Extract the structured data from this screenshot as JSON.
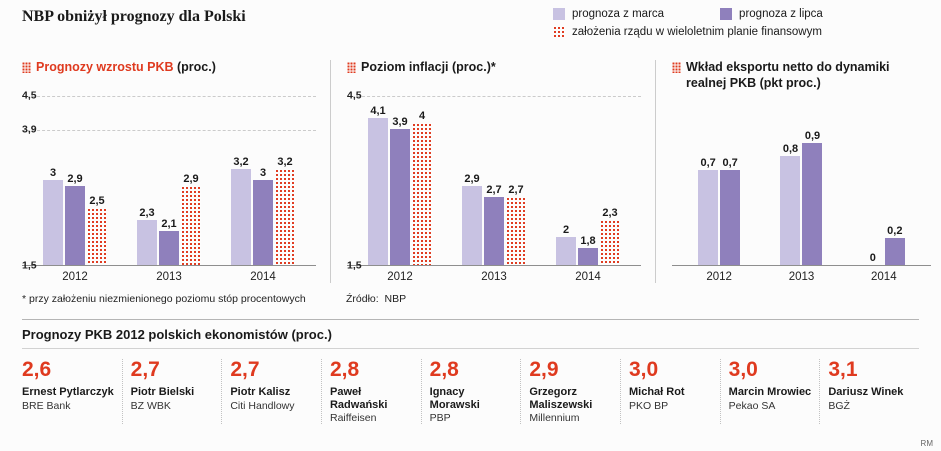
{
  "page_title": "NBP obniżył prognozy dla Polski",
  "legend": {
    "items": [
      {
        "label": "prognoza z marca",
        "style": "marca",
        "color": "#c8c2e2"
      },
      {
        "label": "prognoza z lipca",
        "style": "lipca",
        "color": "#8f80bc"
      },
      {
        "label": "założenia rządu w wieloletnim planie finansowym",
        "style": "rzad",
        "color": "#df3a1f"
      }
    ]
  },
  "colors": {
    "accent_red": "#df3a1f",
    "marca_purple_light": "#c8c2e2",
    "lipca_purple_dark": "#8f80bc",
    "gridline_grey": "#cbcbcb"
  },
  "chart_data": [
    {
      "type": "bar",
      "title": "Prognozy wzrostu PKB",
      "title_suffix": " (proc.)",
      "title_color": "#df3a1f",
      "categories": [
        "2012",
        "2013",
        "2014"
      ],
      "series": [
        {
          "name": "prognoza z marca",
          "style": "marca",
          "values": [
            3,
            2.3,
            3.2
          ]
        },
        {
          "name": "prognoza z lipca",
          "style": "lipca",
          "values": [
            2.9,
            2.1,
            3
          ]
        },
        {
          "name": "założenia rządu w wieloletnim planie finansowym",
          "style": "rzad",
          "values": [
            2.5,
            2.9,
            3.2
          ]
        }
      ],
      "ylim": [
        1.5,
        4.5
      ],
      "yticks": [
        4.5,
        3.9,
        1.5
      ],
      "grid": true,
      "legend_position": "top-right-shared"
    },
    {
      "type": "bar",
      "title": "Poziom inflacji (proc.)*",
      "title_suffix": "",
      "title_color": "#1a1a1a",
      "categories": [
        "2012",
        "2013",
        "2014"
      ],
      "series": [
        {
          "name": "prognoza z marca",
          "style": "marca",
          "values": [
            4.1,
            2.9,
            2
          ]
        },
        {
          "name": "prognoza z lipca",
          "style": "lipca",
          "values": [
            3.9,
            2.7,
            1.8
          ]
        },
        {
          "name": "założenia rządu w wieloletnim planie finansowym",
          "style": "rzad",
          "values": [
            4,
            2.7,
            2.3
          ]
        }
      ],
      "ylim": [
        1.5,
        4.5
      ],
      "yticks": [
        4.5,
        1.5
      ],
      "grid": true,
      "legend_position": "top-right-shared"
    },
    {
      "type": "bar",
      "title": "Wkład eksportu netto do dynamiki realnej PKB (pkt proc.)",
      "title_suffix": "",
      "title_color": "#1a1a1a",
      "categories": [
        "2012",
        "2013",
        "2014"
      ],
      "series": [
        {
          "name": "prognoza z marca",
          "style": "marca",
          "values": [
            0.7,
            0.8,
            0
          ]
        },
        {
          "name": "prognoza z lipca",
          "style": "lipca",
          "values": [
            0.7,
            0.9,
            0.2
          ]
        }
      ],
      "ylim": [
        0,
        1.25
      ],
      "yticks": [],
      "grid": false,
      "legend_position": "top-right-shared"
    }
  ],
  "footnote": "* przy założeniu niezmienionego poziomu stóp procentowych",
  "source": {
    "label": "Źródło:",
    "value": "NBP"
  },
  "economists": {
    "heading": "Prognozy PKB 2012 polskich ekonomistów (proc.)",
    "entries": [
      {
        "value": "2,6",
        "name": "Ernest Pytlarczyk",
        "bank": "BRE Bank"
      },
      {
        "value": "2,7",
        "name": "Piotr Bielski",
        "bank": "BZ WBK"
      },
      {
        "value": "2,7",
        "name": "Piotr Kalisz",
        "bank": "Citi Handlowy"
      },
      {
        "value": "2,8",
        "name": "Paweł Radwański",
        "bank": "Raiffeisen"
      },
      {
        "value": "2,8",
        "name": "Ignacy Morawski",
        "bank": "PBP"
      },
      {
        "value": "2,9",
        "name": "Grzegorz Maliszewski",
        "bank": "Millennium"
      },
      {
        "value": "3,0",
        "name": "Michał Rot",
        "bank": "PKO BP"
      },
      {
        "value": "3,0",
        "name": "Marcin Mrowiec",
        "bank": "Pekao SA"
      },
      {
        "value": "3,1",
        "name": "Dariusz Winek",
        "bank": "BGŻ"
      }
    ]
  },
  "credit": "RM"
}
